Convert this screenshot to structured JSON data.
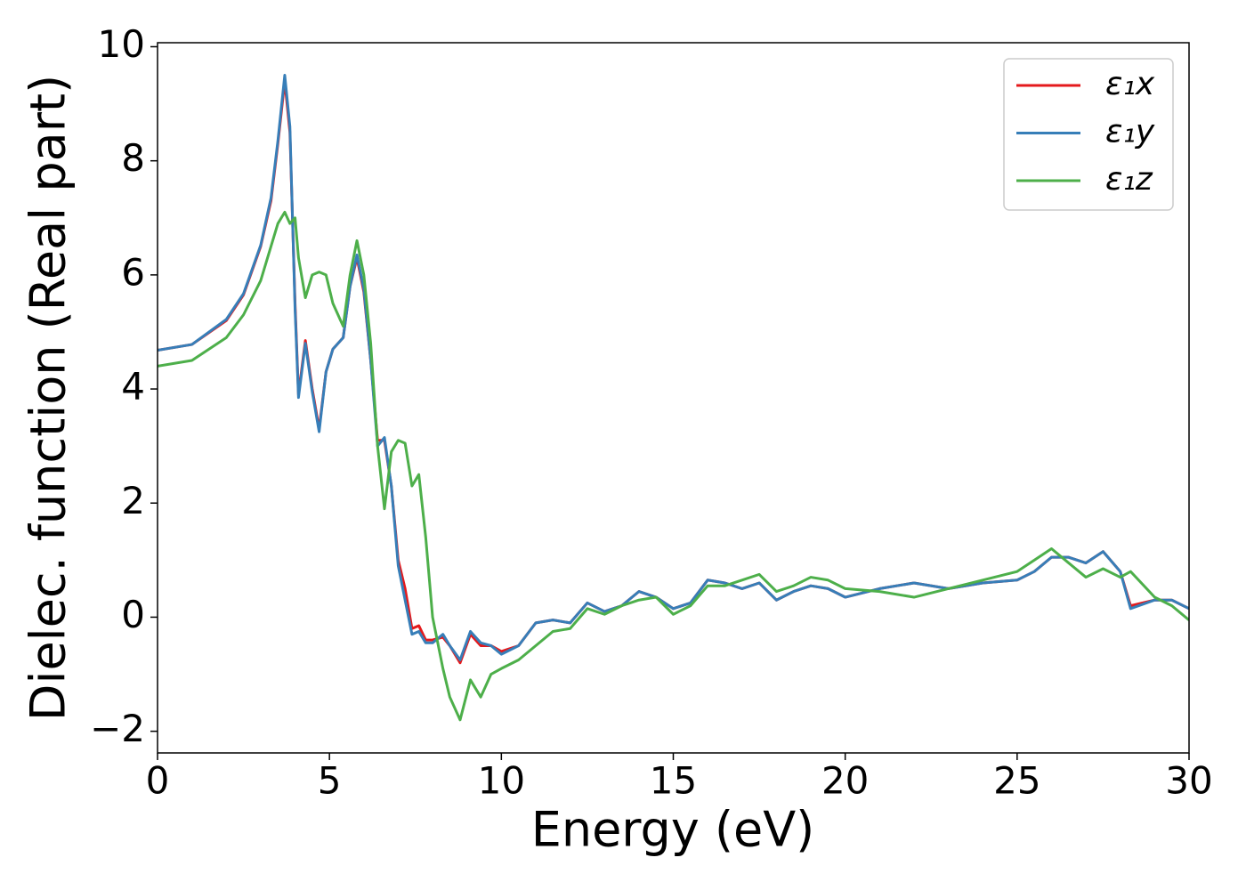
{
  "chart_data": {
    "type": "line",
    "xlabel": "Energy (eV)",
    "ylabel": "Dielec. function (Real part)",
    "x": [
      0,
      1,
      2,
      2.5,
      3,
      3.3,
      3.5,
      3.7,
      3.85,
      4.0,
      4.1,
      4.3,
      4.5,
      4.7,
      4.9,
      5.1,
      5.4,
      5.6,
      5.8,
      6.0,
      6.2,
      6.4,
      6.6,
      6.8,
      7.0,
      7.2,
      7.4,
      7.6,
      7.8,
      8.0,
      8.3,
      8.5,
      8.8,
      9.1,
      9.4,
      9.7,
      10,
      10.5,
      11,
      11.5,
      12,
      12.5,
      13,
      13.5,
      14,
      14.5,
      15,
      15.5,
      16,
      16.5,
      17,
      17.5,
      18,
      18.5,
      19,
      19.5,
      20,
      21,
      22,
      23,
      24,
      25,
      25.5,
      26,
      26.5,
      27,
      27.5,
      28,
      28.3,
      29,
      29.5,
      30
    ],
    "series": [
      {
        "name": "ε₁x",
        "color": "#e41a1c",
        "values": [
          4.68,
          4.78,
          5.2,
          5.65,
          6.5,
          7.3,
          8.3,
          9.4,
          8.5,
          5.5,
          3.9,
          4.85,
          4.0,
          3.3,
          4.3,
          4.7,
          4.9,
          5.8,
          6.3,
          5.7,
          4.5,
          3.1,
          3.1,
          2.3,
          1.0,
          0.5,
          -0.2,
          -0.15,
          -0.4,
          -0.4,
          -0.35,
          -0.5,
          -0.8,
          -0.3,
          -0.5,
          -0.5,
          -0.6,
          -0.5,
          -0.1,
          -0.05,
          -0.1,
          0.25,
          0.1,
          0.2,
          0.45,
          0.35,
          0.15,
          0.25,
          0.65,
          0.6,
          0.5,
          0.6,
          0.3,
          0.45,
          0.55,
          0.5,
          0.35,
          0.5,
          0.6,
          0.5,
          0.6,
          0.65,
          0.8,
          1.05,
          1.05,
          0.95,
          1.15,
          0.8,
          0.2,
          0.3,
          0.3,
          0.15
        ]
      },
      {
        "name": "ε₁y",
        "color": "#377eb8",
        "values": [
          4.68,
          4.78,
          5.22,
          5.67,
          6.52,
          7.35,
          8.35,
          9.5,
          8.6,
          5.4,
          3.85,
          4.8,
          3.95,
          3.25,
          4.3,
          4.7,
          4.9,
          5.8,
          6.35,
          5.75,
          4.5,
          3.0,
          3.15,
          2.3,
          0.9,
          0.3,
          -0.3,
          -0.25,
          -0.45,
          -0.45,
          -0.3,
          -0.5,
          -0.75,
          -0.25,
          -0.45,
          -0.5,
          -0.65,
          -0.5,
          -0.1,
          -0.05,
          -0.1,
          0.25,
          0.1,
          0.2,
          0.45,
          0.35,
          0.15,
          0.25,
          0.65,
          0.6,
          0.5,
          0.6,
          0.3,
          0.45,
          0.55,
          0.5,
          0.35,
          0.5,
          0.6,
          0.5,
          0.6,
          0.65,
          0.8,
          1.05,
          1.05,
          0.95,
          1.15,
          0.8,
          0.15,
          0.3,
          0.3,
          0.15
        ]
      },
      {
        "name": "ε₁z",
        "color": "#4daf4a",
        "values": [
          4.4,
          4.5,
          4.9,
          5.3,
          5.9,
          6.5,
          6.9,
          7.1,
          6.9,
          7.0,
          6.3,
          5.6,
          6.0,
          6.05,
          6.0,
          5.5,
          5.1,
          6.0,
          6.6,
          6.0,
          4.8,
          3.0,
          1.9,
          2.9,
          3.1,
          3.05,
          2.3,
          2.5,
          1.4,
          0.0,
          -0.9,
          -1.4,
          -1.8,
          -1.1,
          -1.4,
          -1.0,
          -0.9,
          -0.75,
          -0.5,
          -0.25,
          -0.2,
          0.15,
          0.05,
          0.2,
          0.3,
          0.35,
          0.05,
          0.2,
          0.55,
          0.55,
          0.65,
          0.75,
          0.45,
          0.55,
          0.7,
          0.65,
          0.5,
          0.45,
          0.35,
          0.5,
          0.65,
          0.8,
          1.0,
          1.2,
          0.95,
          0.7,
          0.85,
          0.7,
          0.8,
          0.35,
          0.2,
          -0.05
        ]
      }
    ],
    "xlim": [
      0,
      30
    ],
    "xticks": [
      0,
      5,
      10,
      15,
      20,
      25,
      30
    ],
    "ylim": [
      -2.38,
      10.07
    ],
    "yticks": [
      {
        "value": -2,
        "label": "−2"
      },
      0,
      2,
      4,
      6,
      8,
      10
    ],
    "grid": false,
    "legend": "upper-right"
  }
}
